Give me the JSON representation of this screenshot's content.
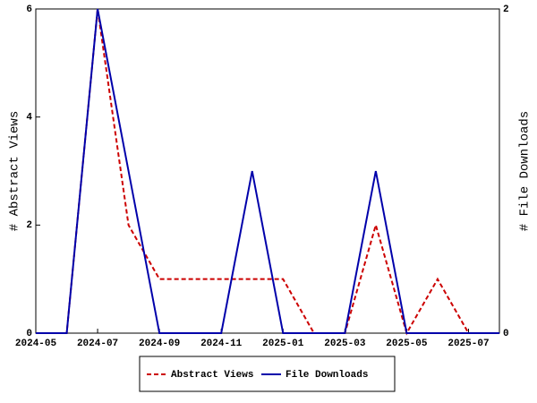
{
  "chart_data": {
    "type": "line",
    "x": [
      "2024-05",
      "2024-06",
      "2024-07",
      "2024-08",
      "2024-09",
      "2024-10",
      "2024-11",
      "2024-12",
      "2025-01",
      "2025-02",
      "2025-03",
      "2025-04",
      "2025-05",
      "2025-06",
      "2025-07",
      "2025-08"
    ],
    "xlim": [
      "2024-05",
      "2025-08"
    ],
    "xticks": [
      "2024-05",
      "2024-07",
      "2024-09",
      "2024-11",
      "2025-01",
      "2025-03",
      "2025-05",
      "2025-07"
    ],
    "ylabel": "# Abstract Views",
    "y2label": "# File Downloads",
    "ylim": [
      0,
      6
    ],
    "yticks": [
      0,
      2,
      4,
      6
    ],
    "y2lim": [
      0,
      2
    ],
    "y2ticks": [
      0,
      2
    ],
    "series": [
      {
        "name": "Abstract Views",
        "color": "#cc0000",
        "dash": true,
        "values": [
          0,
          0,
          6,
          2,
          1,
          1,
          1,
          1,
          1,
          0,
          0,
          2,
          0,
          1,
          0,
          0
        ]
      },
      {
        "name": "File Downloads",
        "color": "#0000aa",
        "axis": "y2",
        "values": [
          0,
          0,
          2,
          1,
          0,
          0,
          0,
          1,
          0,
          0,
          0,
          1,
          0,
          0,
          0,
          0
        ]
      }
    ]
  }
}
